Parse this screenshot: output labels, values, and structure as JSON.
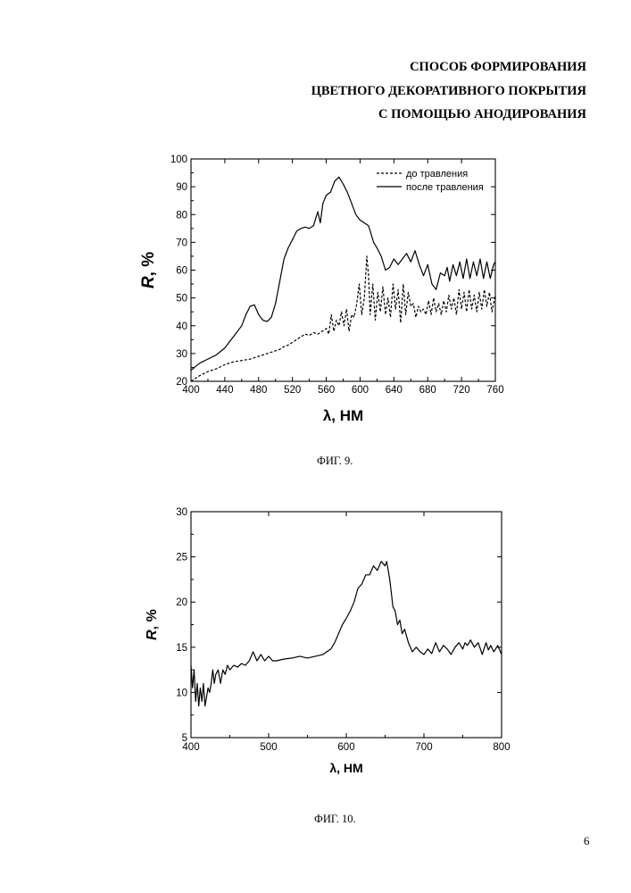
{
  "header": {
    "title_lines": [
      "СПОСОБ ФОРМИРОВАНИЯ",
      "ЦВЕТНОГО ДЕКОРАТИВНОГО ПОКРЫТИЯ",
      "С ПОМОЩЬЮ АНОДИРОВАНИЯ"
    ]
  },
  "page_number": "6",
  "chart_data": [
    {
      "type": "line",
      "caption": "ФИГ. 9.",
      "xlabel_symbol": "λ",
      "xlabel_unit": ", НМ",
      "ylabel_symbol": "R",
      "ylabel_unit": ", %",
      "xlim": [
        400,
        760
      ],
      "ylim": [
        20,
        100
      ],
      "xticks": [
        400,
        440,
        480,
        520,
        560,
        600,
        640,
        680,
        720,
        760
      ],
      "yticks": [
        20,
        30,
        40,
        50,
        60,
        70,
        80,
        90,
        100
      ],
      "grid": false,
      "legend_position": "top-right",
      "series": [
        {
          "name": "до травления",
          "style": "dashed",
          "x": [
            400,
            410,
            420,
            430,
            440,
            450,
            460,
            470,
            480,
            490,
            500,
            505,
            510,
            515,
            520,
            525,
            530,
            535,
            540,
            545,
            550,
            555,
            560,
            563,
            566,
            569,
            572,
            575,
            578,
            581,
            584,
            587,
            590,
            593,
            596,
            599,
            602,
            605,
            608,
            610,
            612,
            615,
            618,
            621,
            624,
            627,
            630,
            633,
            636,
            639,
            642,
            645,
            648,
            651,
            654,
            657,
            660,
            663,
            666,
            669,
            672,
            675,
            678,
            681,
            684,
            687,
            690,
            693,
            696,
            699,
            702,
            705,
            708,
            711,
            714,
            717,
            720,
            723,
            726,
            729,
            732,
            735,
            738,
            741,
            744,
            747,
            750,
            753,
            756,
            760
          ],
          "y": [
            20,
            22,
            23.5,
            24.5,
            26,
            27,
            27.5,
            28,
            29,
            30,
            31,
            31.5,
            32.5,
            33,
            34,
            35,
            36,
            37,
            36.5,
            37.5,
            37,
            38,
            39,
            37,
            44,
            38,
            42,
            40,
            45,
            40,
            46,
            38,
            44,
            43,
            48,
            55,
            44,
            50,
            65,
            58,
            44,
            55,
            42,
            52,
            45,
            54,
            44,
            50,
            43,
            55,
            46,
            53,
            41,
            55,
            44,
            52,
            47,
            48,
            43,
            47,
            45,
            46,
            44,
            49,
            44,
            50,
            45,
            48,
            44,
            49,
            45,
            51,
            46,
            50,
            44,
            53,
            46,
            52,
            45,
            53,
            46,
            51,
            45,
            52,
            46,
            53,
            47,
            52,
            45,
            51
          ]
        },
        {
          "name": "после травления",
          "style": "solid",
          "x": [
            400,
            410,
            420,
            430,
            440,
            450,
            460,
            465,
            470,
            475,
            480,
            485,
            490,
            495,
            500,
            505,
            510,
            515,
            520,
            525,
            530,
            535,
            540,
            545,
            550,
            553,
            556,
            560,
            565,
            570,
            575,
            580,
            585,
            590,
            595,
            600,
            605,
            610,
            613,
            616,
            620,
            625,
            630,
            635,
            640,
            645,
            650,
            655,
            660,
            665,
            670,
            675,
            680,
            685,
            690,
            695,
            700,
            703,
            706,
            710,
            714,
            718,
            722,
            726,
            730,
            734,
            738,
            742,
            746,
            750,
            754,
            758,
            760
          ],
          "y": [
            24,
            26.5,
            28,
            29.5,
            32,
            36,
            40,
            44,
            47,
            47.5,
            44,
            42,
            41.5,
            43,
            48,
            56,
            64,
            68,
            71,
            74,
            75,
            75.5,
            75,
            76,
            81,
            77,
            84,
            87,
            88,
            92,
            93.5,
            91,
            88,
            84,
            80,
            78,
            77,
            76,
            73,
            70,
            68,
            65,
            60,
            61,
            64,
            62,
            64,
            66,
            63,
            67,
            62,
            58,
            62,
            55,
            53,
            59,
            58,
            61,
            56,
            62,
            58,
            63,
            57,
            64,
            57,
            63,
            58,
            64,
            57,
            63,
            57,
            62,
            63
          ]
        }
      ]
    },
    {
      "type": "line",
      "caption": "ФИГ. 10.",
      "xlabel_symbol": "λ",
      "xlabel_unit": ", НМ",
      "ylabel_symbol": "R",
      "ylabel_unit": ", %",
      "xlim": [
        400,
        800
      ],
      "ylim": [
        5,
        30
      ],
      "xticks": [
        400,
        500,
        600,
        700,
        800
      ],
      "yticks": [
        5,
        10,
        15,
        20,
        25,
        30
      ],
      "grid": false,
      "series": [
        {
          "style": "solid",
          "x": [
            400,
            402,
            404,
            406,
            408,
            410,
            412,
            414,
            416,
            418,
            420,
            422,
            424,
            426,
            428,
            430,
            432,
            435,
            438,
            441,
            444,
            447,
            450,
            455,
            460,
            465,
            470,
            475,
            480,
            485,
            490,
            495,
            500,
            505,
            510,
            520,
            530,
            540,
            550,
            560,
            570,
            580,
            585,
            590,
            595,
            600,
            605,
            610,
            615,
            620,
            625,
            630,
            635,
            640,
            645,
            650,
            652,
            654,
            656,
            658,
            660,
            663,
            666,
            669,
            672,
            675,
            680,
            685,
            690,
            695,
            700,
            705,
            710,
            715,
            720,
            725,
            730,
            735,
            740,
            745,
            750,
            753,
            756,
            760,
            765,
            770,
            775,
            780,
            783,
            786,
            790,
            795,
            800
          ],
          "y": [
            13,
            10.5,
            12.5,
            9,
            11,
            8.5,
            10.5,
            9,
            11,
            8.5,
            9.5,
            10.5,
            10,
            11,
            12.5,
            11,
            12,
            12.5,
            11,
            12.5,
            12,
            13,
            12.5,
            13,
            12.8,
            13.2,
            13,
            13.5,
            14.5,
            13.5,
            14.2,
            13.5,
            14,
            13.5,
            13.5,
            13.7,
            13.8,
            14,
            13.8,
            14,
            14.2,
            14.8,
            15.5,
            16.5,
            17.5,
            18.2,
            19,
            20,
            21.5,
            22,
            23,
            23,
            24,
            23.5,
            24.5,
            24,
            24.5,
            23.5,
            22.5,
            21,
            19.5,
            19,
            17.5,
            18,
            16.5,
            17,
            15.5,
            14.5,
            15,
            14.5,
            14.2,
            14.8,
            14.3,
            15.5,
            14.5,
            15.2,
            14.8,
            14.2,
            15,
            15.5,
            14.8,
            15.5,
            15.2,
            15.8,
            15,
            15.5,
            14.2,
            15.5,
            14.7,
            15.2,
            14.5,
            15.2,
            14.2
          ]
        }
      ]
    }
  ]
}
